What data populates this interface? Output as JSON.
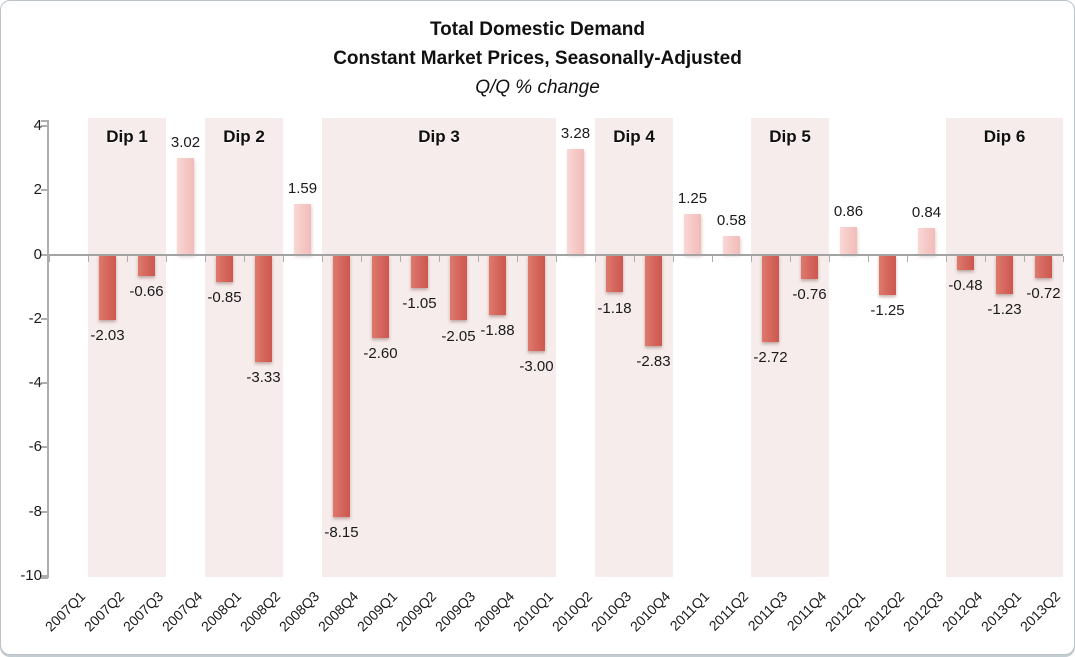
{
  "title": {
    "line1": "Total Domestic Demand",
    "line2": "Constant Market Prices, Seasonally-Adjusted",
    "line3": "Q/Q % change"
  },
  "chart_data": {
    "type": "bar",
    "title": "Total Domestic Demand",
    "subtitle": "Constant Market Prices, Seasonally-Adjusted",
    "units": "Q/Q % change",
    "categories": [
      "2007Q1",
      "2007Q2",
      "2007Q3",
      "2007Q4",
      "2008Q1",
      "2008Q2",
      "2008Q3",
      "2008Q4",
      "2009Q1",
      "2009Q2",
      "2009Q3",
      "2009Q4",
      "2010Q1",
      "2010Q2",
      "2010Q3",
      "2010Q4",
      "2011Q1",
      "2011Q2",
      "2011Q3",
      "2011Q4",
      "2012Q1",
      "2012Q2",
      "2012Q3",
      "2012Q4",
      "2013Q1",
      "2013Q2"
    ],
    "values": [
      null,
      -2.03,
      -0.66,
      3.02,
      -0.85,
      -3.33,
      1.59,
      -8.15,
      -2.6,
      -1.05,
      -2.05,
      -1.88,
      -3.0,
      3.28,
      -1.18,
      -2.83,
      1.25,
      0.58,
      -2.72,
      -0.76,
      0.86,
      -1.25,
      0.84,
      -0.48,
      -1.23,
      -0.72
    ],
    "labels": [
      "",
      "-2.03",
      "-0.66",
      "3.02",
      "-0.85",
      "-3.33",
      "1.59",
      "-8.15",
      "-2.60",
      "-1.05",
      "-2.05",
      "-1.88",
      "-3.00",
      "3.28",
      "-1.18",
      "-2.83",
      "1.25",
      "0.58",
      "-2.72",
      "-0.76",
      "0.86",
      "-1.25",
      "0.84",
      "-0.48",
      "-1.23",
      "-0.72"
    ],
    "ylim": [
      -10,
      4
    ],
    "yticks": [
      4,
      2,
      0,
      -2,
      -4,
      -6,
      -8,
      -10
    ],
    "grid": false,
    "legend": null,
    "annotations": [
      {
        "label": "Dip 1",
        "from": "2007Q2",
        "to": "2007Q3",
        "start_index": 1,
        "end_index": 2
      },
      {
        "label": "Dip 2",
        "from": "2008Q1",
        "to": "2008Q2",
        "start_index": 4,
        "end_index": 5
      },
      {
        "label": "Dip 3",
        "from": "2008Q4",
        "to": "2010Q1",
        "start_index": 7,
        "end_index": 12
      },
      {
        "label": "Dip 4",
        "from": "2010Q3",
        "to": "2010Q4",
        "start_index": 14,
        "end_index": 15
      },
      {
        "label": "Dip 5",
        "from": "2011Q3",
        "to": "2011Q4",
        "start_index": 18,
        "end_index": 19
      },
      {
        "label": "Dip 6",
        "from": "2012Q4",
        "to": "2013Q2",
        "start_index": 23,
        "end_index": 25
      }
    ],
    "colors": {
      "negative_bar": "#d4655c",
      "negative_bar_light": "#df796c",
      "positive_bar": "#f3c1be",
      "positive_bar_light": "#f9d8d6",
      "dip_shading": "#f6eceb",
      "axis_line": "#aeaeae",
      "zero_line": "#a3a3a3",
      "text": "#1c1c1c"
    }
  }
}
